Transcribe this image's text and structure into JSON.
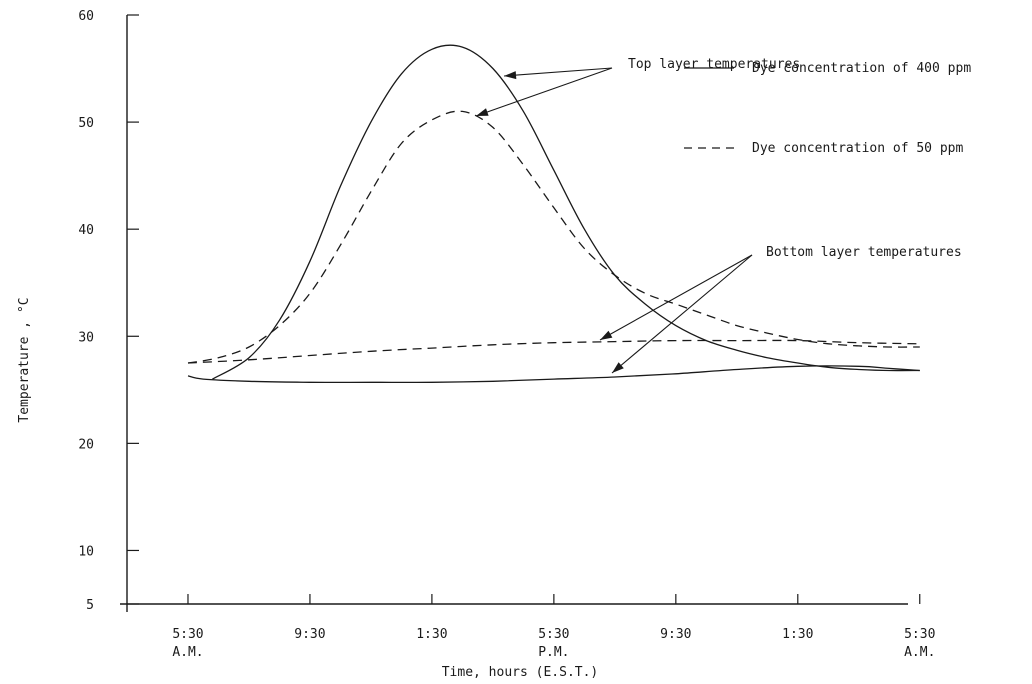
{
  "chart_data": {
    "type": "line",
    "title": "",
    "xlabel": "Time, hours (E.S.T.)",
    "ylabel": "Temperature , °C",
    "xlim": [
      3.5,
      30
    ],
    "ylim": [
      5,
      60
    ],
    "y_ticks": [
      5,
      10,
      20,
      30,
      40,
      50,
      60
    ],
    "x_ticks": [
      {
        "x": 5.5,
        "line1": "5:30",
        "line2": "A.M."
      },
      {
        "x": 9.5,
        "line1": "9:30",
        "line2": ""
      },
      {
        "x": 13.5,
        "line1": "1:30",
        "line2": ""
      },
      {
        "x": 17.5,
        "line1": "5:30",
        "line2": "P.M."
      },
      {
        "x": 21.5,
        "line1": "9:30",
        "line2": ""
      },
      {
        "x": 25.5,
        "line1": "1:30",
        "line2": ""
      },
      {
        "x": 29.5,
        "line1": "5:30",
        "line2": "A.M."
      }
    ],
    "legend": [
      {
        "label": "Dye concentration of 400 ppm",
        "style": "solid"
      },
      {
        "label": "Dye concentration of 50 ppm",
        "style": "dashed"
      }
    ],
    "annotations": [
      {
        "id": "top",
        "text": "Top layer temperatures"
      },
      {
        "id": "bottom",
        "text": "Bottom layer temperatures"
      }
    ],
    "series": [
      {
        "group": "top",
        "concentration_ppm": 400,
        "style": "solid",
        "x": [
          6.3,
          7.5,
          8.5,
          9.5,
          10.5,
          11.5,
          12.5,
          13.5,
          14.5,
          15.5,
          16.5,
          17.5,
          18.5,
          19.5,
          20.5,
          21.5,
          22.5,
          23.5,
          24.5,
          25.5,
          26.5,
          27.5,
          28.5,
          29.5
        ],
        "y": [
          26.0,
          28.0,
          31.5,
          37.0,
          44.0,
          50.0,
          54.5,
          56.8,
          57.0,
          55.0,
          51.0,
          45.5,
          40.0,
          35.7,
          33.0,
          31.0,
          29.6,
          28.7,
          28.0,
          27.5,
          27.1,
          26.9,
          26.8,
          26.8
        ]
      },
      {
        "group": "top",
        "concentration_ppm": 50,
        "style": "dashed",
        "x": [
          5.5,
          6.5,
          7.5,
          8.5,
          9.5,
          10.5,
          11.5,
          12.5,
          13.5,
          14.5,
          15.5,
          16.5,
          17.5,
          18.5,
          19.5,
          20.5,
          21.5,
          22.5,
          23.5,
          24.5,
          25.5,
          26.5,
          27.5,
          28.5,
          29.5
        ],
        "y": [
          27.5,
          28.0,
          29.0,
          31.0,
          34.0,
          38.5,
          43.5,
          48.0,
          50.2,
          51.0,
          49.5,
          46.0,
          42.0,
          38.2,
          35.7,
          34.0,
          33.0,
          32.0,
          31.0,
          30.3,
          29.7,
          29.3,
          29.1,
          29.0,
          29.0
        ]
      },
      {
        "group": "bottom",
        "concentration_ppm": 400,
        "style": "solid",
        "x": [
          5.5,
          6.0,
          7.5,
          9.5,
          11.5,
          13.5,
          15.5,
          17.5,
          19.5,
          21.5,
          23.5,
          25.5,
          27.5,
          28.5,
          29.5
        ],
        "y": [
          26.3,
          26.0,
          25.8,
          25.7,
          25.7,
          25.7,
          25.8,
          26.0,
          26.2,
          26.5,
          26.9,
          27.2,
          27.2,
          27.0,
          26.8
        ]
      },
      {
        "group": "bottom",
        "concentration_ppm": 50,
        "style": "dashed",
        "x": [
          5.5,
          7.5,
          9.5,
          11.5,
          13.5,
          15.5,
          17.5,
          19.5,
          21.5,
          23.5,
          25.5,
          27.5,
          29.5
        ],
        "y": [
          27.5,
          27.8,
          28.2,
          28.6,
          28.9,
          29.2,
          29.4,
          29.5,
          29.6,
          29.6,
          29.6,
          29.4,
          29.3
        ]
      }
    ]
  }
}
